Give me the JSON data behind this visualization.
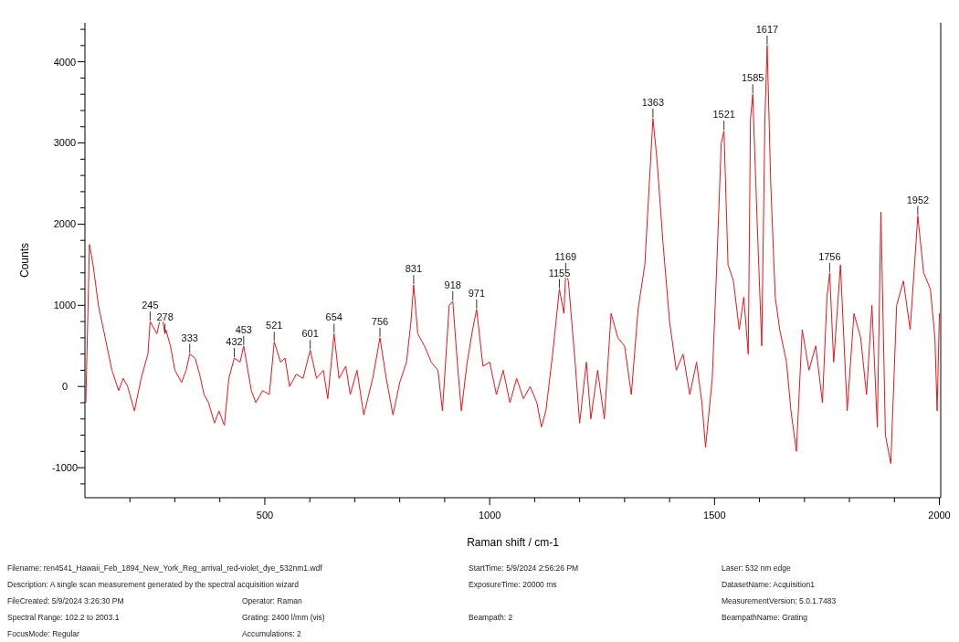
{
  "chart_data": {
    "type": "line",
    "xlabel": "Raman shift / cm-1",
    "ylabel": "Counts",
    "xlim": [
      100,
      2003
    ],
    "ylim": [
      -1370,
      4480
    ],
    "xticks": [
      {
        "value": 200,
        "label": null
      },
      {
        "value": 300,
        "label": null
      },
      {
        "value": 400,
        "label": null
      },
      500,
      {
        "value": 600,
        "label": null
      },
      {
        "value": 700,
        "label": null
      },
      {
        "value": 800,
        "label": null
      },
      {
        "value": 900,
        "label": null
      },
      1000,
      {
        "value": 1100,
        "label": null
      },
      {
        "value": 1200,
        "label": null
      },
      {
        "value": 1300,
        "label": null
      },
      {
        "value": 1400,
        "label": null
      },
      1500,
      {
        "value": 1600,
        "label": null
      },
      {
        "value": 1700,
        "label": null
      },
      {
        "value": 1800,
        "label": null
      },
      {
        "value": 1900,
        "label": null
      },
      2000
    ],
    "yticks": [
      {
        "value": -1200,
        "label": null
      },
      -1000,
      {
        "value": -800,
        "label": null
      },
      {
        "value": -600,
        "label": null
      },
      {
        "value": -400,
        "label": null
      },
      {
        "value": -200,
        "label": null
      },
      0,
      {
        "value": 200,
        "label": null
      },
      {
        "value": 400,
        "label": null
      },
      {
        "value": 600,
        "label": null
      },
      {
        "value": 800,
        "label": null
      },
      1000,
      {
        "value": 1200,
        "label": null
      },
      {
        "value": 1400,
        "label": null
      },
      {
        "value": 1600,
        "label": null
      },
      {
        "value": 1800,
        "label": null
      },
      2000,
      {
        "value": 2200,
        "label": null
      },
      {
        "value": 2400,
        "label": null
      },
      {
        "value": 2600,
        "label": null
      },
      {
        "value": 2800,
        "label": null
      },
      3000,
      {
        "value": 3200,
        "label": null
      },
      {
        "value": 3400,
        "label": null
      },
      {
        "value": 3600,
        "label": null
      },
      {
        "value": 3800,
        "label": null
      },
      4000,
      {
        "value": 4200,
        "label": null
      },
      {
        "value": 4400,
        "label": null
      }
    ],
    "grid": false,
    "series": [
      {
        "color": "#e8141c",
        "x": [
          102,
          110,
          118,
          130,
          145,
          160,
          175,
          185,
          195,
          210,
          225,
          240,
          245,
          250,
          260,
          270,
          278,
          280,
          290,
          300,
          315,
          325,
          333,
          345,
          355,
          365,
          375,
          388,
          398,
          410,
          420,
          432,
          445,
          453,
          470,
          480,
          495,
          510,
          521,
          535,
          545,
          555,
          570,
          585,
          601,
          615,
          630,
          640,
          654,
          665,
          680,
          690,
          705,
          720,
          740,
          756,
          770,
          785,
          800,
          815,
          825,
          831,
          840,
          855,
          870,
          885,
          895,
          910,
          918,
          928,
          937,
          950,
          962,
          971,
          985,
          1000,
          1015,
          1030,
          1045,
          1060,
          1075,
          1090,
          1105,
          1115,
          1125,
          1140,
          1155,
          1165,
          1169,
          1175,
          1190,
          1200,
          1215,
          1225,
          1240,
          1255,
          1270,
          1285,
          1300,
          1315,
          1330,
          1345,
          1355,
          1363,
          1372,
          1385,
          1400,
          1415,
          1430,
          1445,
          1460,
          1472,
          1480,
          1495,
          1505,
          1515,
          1521,
          1530,
          1542,
          1555,
          1565,
          1575,
          1580,
          1585,
          1595,
          1605,
          1612,
          1617,
          1625,
          1635,
          1645,
          1660,
          1670,
          1682,
          1695,
          1710,
          1725,
          1740,
          1750,
          1756,
          1765,
          1780,
          1795,
          1810,
          1825,
          1838,
          1850,
          1862,
          1870,
          1880,
          1892,
          1905,
          1920,
          1935,
          1952,
          1965,
          1980,
          1990,
          1995,
          2000
        ],
        "values": [
          -200,
          1750,
          1500,
          1000,
          600,
          200,
          -50,
          100,
          0,
          -300,
          100,
          400,
          800,
          750,
          650,
          900,
          650,
          700,
          500,
          200,
          50,
          200,
          400,
          350,
          150,
          -100,
          -200,
          -450,
          -300,
          -480,
          100,
          350,
          300,
          500,
          -50,
          -200,
          -50,
          -100,
          550,
          300,
          350,
          0,
          150,
          100,
          450,
          100,
          200,
          -150,
          650,
          100,
          250,
          -100,
          200,
          -350,
          100,
          600,
          100,
          -350,
          50,
          300,
          800,
          1250,
          650,
          500,
          300,
          200,
          -300,
          1000,
          1050,
          300,
          -300,
          300,
          700,
          950,
          250,
          300,
          -100,
          200,
          -200,
          100,
          -150,
          0,
          -200,
          -500,
          -300,
          400,
          1200,
          900,
          1400,
          1300,
          300,
          -450,
          300,
          -400,
          200,
          -400,
          900,
          600,
          500,
          -100,
          950,
          1500,
          2500,
          3300,
          2800,
          1800,
          800,
          200,
          400,
          -100,
          300,
          -200,
          -750,
          100,
          1500,
          3000,
          3150,
          1500,
          1300,
          700,
          1100,
          400,
          3300,
          3600,
          2000,
          500,
          3300,
          4200,
          2500,
          1100,
          700,
          300,
          -300,
          -800,
          700,
          200,
          500,
          -200,
          1100,
          1400,
          300,
          1500,
          -300,
          900,
          600,
          -100,
          1000,
          -500,
          2150,
          -600,
          -950,
          1000,
          1300,
          700,
          2100,
          1400,
          1200,
          600,
          -300,
          900
        ]
      }
    ],
    "annotations": [
      {
        "text": "245",
        "x": 245,
        "y": 800
      },
      {
        "text": "278",
        "x": 278,
        "y": 650
      },
      {
        "text": "333",
        "x": 333,
        "y": 400
      },
      {
        "text": "432",
        "x": 432,
        "y": 350
      },
      {
        "text": "453",
        "x": 453,
        "y": 500
      },
      {
        "text": "521",
        "x": 521,
        "y": 550
      },
      {
        "text": "601",
        "x": 601,
        "y": 450
      },
      {
        "text": "654",
        "x": 654,
        "y": 650
      },
      {
        "text": "756",
        "x": 756,
        "y": 600
      },
      {
        "text": "831",
        "x": 831,
        "y": 1250
      },
      {
        "text": "918",
        "x": 918,
        "y": 1050
      },
      {
        "text": "971",
        "x": 971,
        "y": 950
      },
      {
        "text": "1155",
        "x": 1155,
        "y": 1200
      },
      {
        "text": "1169",
        "x": 1169,
        "y": 1400
      },
      {
        "text": "1363",
        "x": 1363,
        "y": 3300
      },
      {
        "text": "1521",
        "x": 1521,
        "y": 3150
      },
      {
        "text": "1585",
        "x": 1585,
        "y": 3600
      },
      {
        "text": "1617",
        "x": 1617,
        "y": 4200
      },
      {
        "text": "1756",
        "x": 1756,
        "y": 1400
      },
      {
        "text": "1952",
        "x": 1952,
        "y": 2100
      },
      "Filename: ren4541_Hawaii_Feb_1894_New_York_Reg_arrival_red-violet_dye_532nm1.wdf",
      "Description: A single scan measurement generated by the spectral acquisition wizard",
      "FileCreated: 5/9/2024 3:26:30 PM",
      "Operator: Raman",
      "Spectral Range: 102.2 to 2003.1",
      "Grating: 2400 l/mm (vis)",
      "FocusMode: Regular",
      "Accumulations: 2",
      "StartTime: 5/9/2024 2:56:26 PM",
      "ExposureTime: 20000 ms",
      "Beampath: 2",
      "Laser: 532 nm edge",
      "DatasetName: Acquisition1",
      "MeasurementVersion: 5.0.1.7483",
      "BeampathName: Grating"
    ]
  }
}
